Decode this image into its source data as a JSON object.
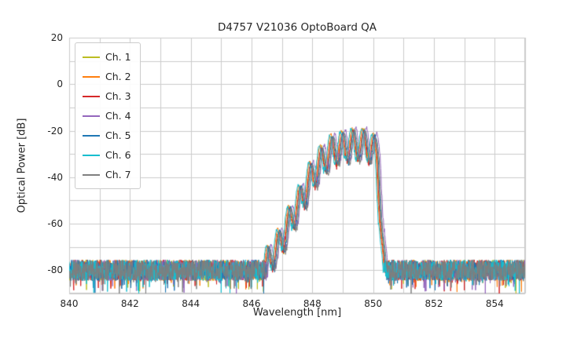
{
  "title": "D4757 V21036 OptoBoard QA",
  "chart_data": {
    "type": "line",
    "title": "D4757 V21036 OptoBoard QA",
    "xlabel": "Wavelength [nm]",
    "ylabel": "Optical Power [dB]",
    "xlim": [
      840,
      855
    ],
    "ylim": [
      -90,
      20
    ],
    "x_ticks": [
      840,
      842,
      844,
      846,
      848,
      850,
      852,
      854
    ],
    "y_ticks": [
      20,
      0,
      -20,
      -40,
      -60,
      -80
    ],
    "grid": {
      "x_step": 1,
      "y_step": 10,
      "color": "#cccccc",
      "border_color": "#cccccc"
    },
    "legend_position": "upper left",
    "series": [
      {
        "name": "Ch. 1",
        "color": "#bcbd22",
        "x_offset": 0.0,
        "y_offset": 0.0
      },
      {
        "name": "Ch. 2",
        "color": "#ff7f0e",
        "x_offset": -0.05,
        "y_offset": 0.5
      },
      {
        "name": "Ch. 3",
        "color": "#d62728",
        "x_offset": -0.02,
        "y_offset": -0.5
      },
      {
        "name": "Ch. 4",
        "color": "#9467bd",
        "x_offset": 0.08,
        "y_offset": 0.8
      },
      {
        "name": "Ch. 5",
        "color": "#1f77b4",
        "x_offset": 0.02,
        "y_offset": -0.3
      },
      {
        "name": "Ch. 6",
        "color": "#17becf",
        "x_offset": -0.08,
        "y_offset": 0.3
      },
      {
        "name": "Ch. 7",
        "color": "#7f7f7f",
        "x_offset": 0.05,
        "y_offset": -0.8
      }
    ],
    "spectrum": {
      "noise_floor": -80,
      "noise_spread": 9,
      "spike_probability": 0.07,
      "spike_depth": 7,
      "mode_spacing": 0.35,
      "ripple_anchor": 846.55,
      "dip_depth": 13,
      "signal_jitter": 1.4,
      "envelope_points": [
        [
          846.35,
          -80
        ],
        [
          846.55,
          -70
        ],
        [
          846.9,
          -63
        ],
        [
          847.25,
          -53
        ],
        [
          847.6,
          -44
        ],
        [
          847.95,
          -34
        ],
        [
          848.3,
          -27
        ],
        [
          848.65,
          -22
        ],
        [
          849.0,
          -20.5
        ],
        [
          849.35,
          -19.5
        ],
        [
          849.7,
          -19.5
        ],
        [
          850.0,
          -21
        ],
        [
          850.15,
          -24
        ],
        [
          850.4,
          -80
        ]
      ],
      "sample_step_nm": 0.01
    }
  }
}
